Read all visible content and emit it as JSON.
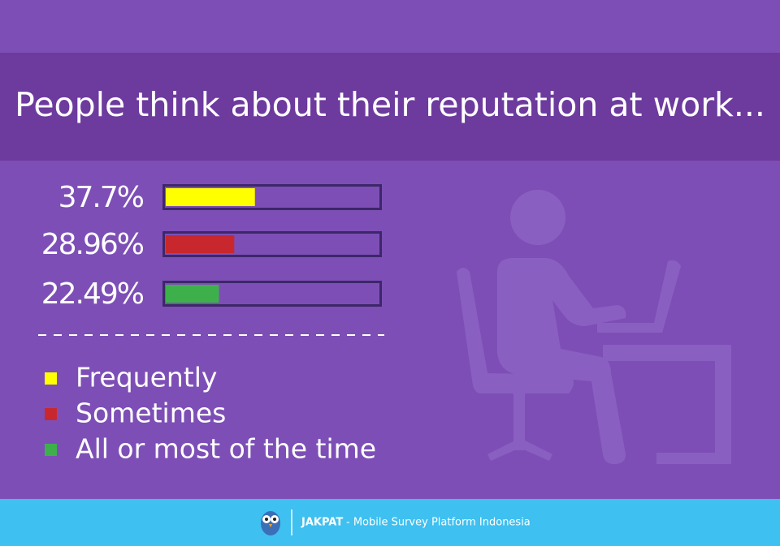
{
  "chart_data": {
    "type": "bar",
    "title": "People think about their reputation at work...",
    "categories": [
      "Frequently",
      "Sometimes",
      "All or most of the time"
    ],
    "values": [
      37.7,
      28.96,
      22.49
    ],
    "value_labels": [
      "37.7%",
      "28.96%",
      "22.49%"
    ],
    "colors": [
      "#ffff00",
      "#c8282d",
      "#3db04b"
    ],
    "xlim": [
      0,
      90
    ]
  },
  "footer": {
    "brand": "JAKPAT",
    "tagline": "- Mobile Survey Platform Indonesia"
  }
}
